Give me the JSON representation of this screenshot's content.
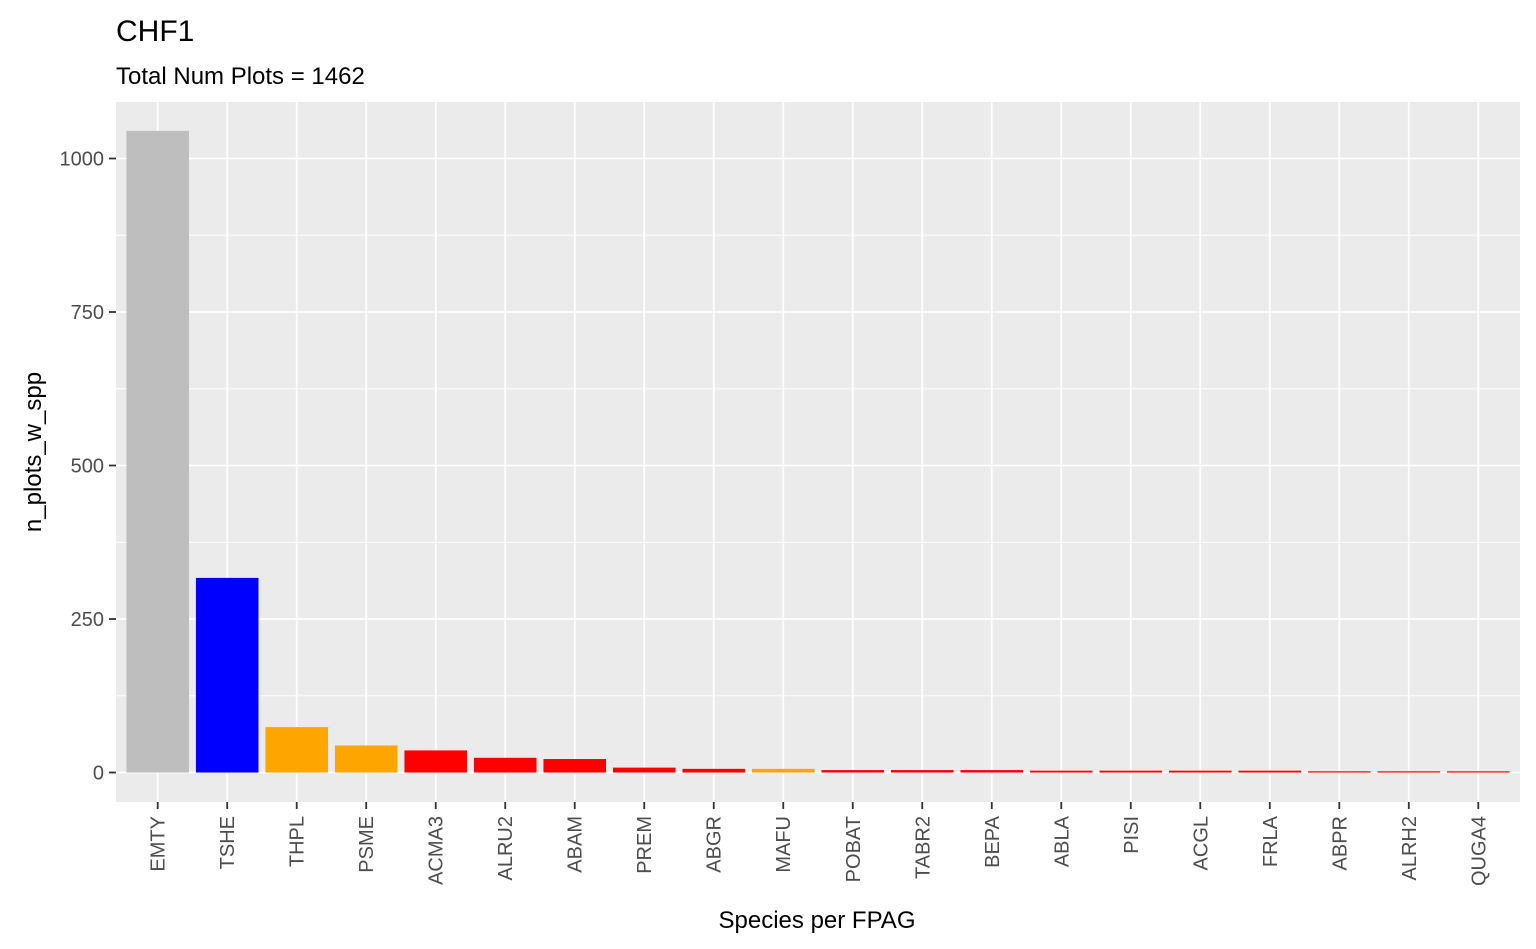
{
  "chart_data": {
    "type": "bar",
    "title": "CHF1",
    "subtitle": "Total Num Plots = 1462",
    "xlabel": "Species per FPAG",
    "ylabel": "n_plots_w_spp",
    "ylim": [
      -48,
      1092
    ],
    "yticks": [
      0,
      250,
      500,
      750,
      1000
    ],
    "ytick_labels": [
      "0",
      "250",
      "500",
      "750",
      "1000"
    ],
    "grid": true,
    "legend": "none",
    "categories": [
      "EMTY",
      "TSHE",
      "THPL",
      "PSME",
      "ACMA3",
      "ALRU2",
      "ABAM",
      "PREM",
      "ABGR",
      "MAFU",
      "POBAT",
      "TABR2",
      "BEPA",
      "ABLA",
      "PISI",
      "ACGL",
      "FRLA",
      "ABPR",
      "ALRH2",
      "QUGA4"
    ],
    "values": [
      1045,
      317,
      74,
      44,
      36,
      24,
      22,
      8,
      6,
      6,
      4,
      4,
      4,
      3,
      3,
      3,
      3,
      2,
      2,
      2
    ],
    "colors": [
      "#bebebe",
      "#0000ff",
      "#ffa500",
      "#ffa500",
      "#ff0000",
      "#ff0000",
      "#ff0000",
      "#ff0000",
      "#ff0000",
      "#ffa500",
      "#ff0000",
      "#ff0000",
      "#ff0000",
      "#ff0000",
      "#ff0000",
      "#ff0000",
      "#ff0000",
      "#ff0000",
      "#ff0000",
      "#ff0000"
    ],
    "panel_background": "#ebebeb",
    "grid_color": "#ffffff"
  }
}
